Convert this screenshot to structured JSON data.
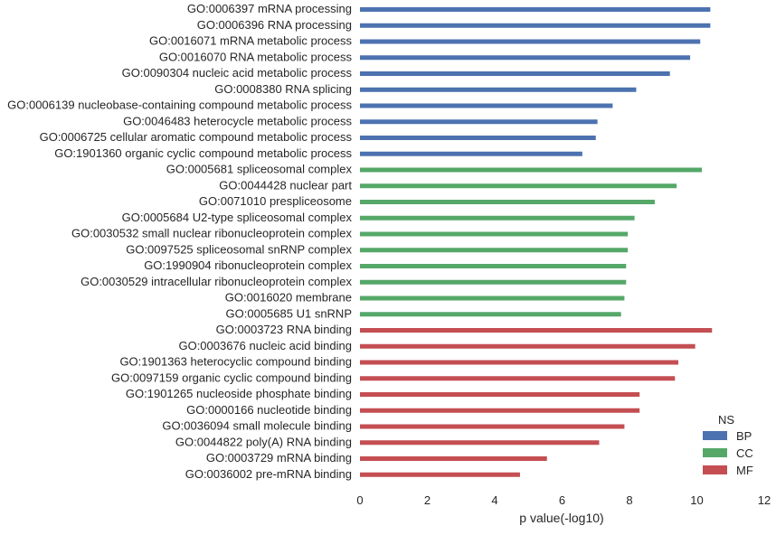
{
  "chart_data": {
    "type": "bar",
    "orientation": "horizontal",
    "xlabel": "p value(-log10)",
    "ylabel": "",
    "xlim": [
      0,
      12
    ],
    "xticks": [
      0,
      2,
      4,
      6,
      8,
      10,
      12
    ],
    "grid": false,
    "legend": {
      "title": "NS",
      "placement": "bottom-right",
      "entries": [
        {
          "label": "BP",
          "color": "#4c72b0"
        },
        {
          "label": "CC",
          "color": "#55a868"
        },
        {
          "label": "MF",
          "color": "#c44e52"
        }
      ]
    },
    "bars": [
      {
        "label": "GO:0006397 mRNA processing",
        "value": 10.4,
        "group": "BP"
      },
      {
        "label": "GO:0006396 RNA processing",
        "value": 10.4,
        "group": "BP"
      },
      {
        "label": "GO:0016071 mRNA metabolic process",
        "value": 10.1,
        "group": "BP"
      },
      {
        "label": "GO:0016070 RNA metabolic process",
        "value": 9.8,
        "group": "BP"
      },
      {
        "label": "GO:0090304 nucleic acid metabolic process",
        "value": 9.2,
        "group": "BP"
      },
      {
        "label": "GO:0008380 RNA splicing",
        "value": 8.2,
        "group": "BP"
      },
      {
        "label": "GO:0006139 nucleobase-containing compound metabolic process",
        "value": 7.5,
        "group": "BP"
      },
      {
        "label": "GO:0046483 heterocycle metabolic process",
        "value": 7.05,
        "group": "BP"
      },
      {
        "label": "GO:0006725 cellular aromatic compound metabolic process",
        "value": 7.0,
        "group": "BP"
      },
      {
        "label": "GO:1901360 organic cyclic compound metabolic process",
        "value": 6.6,
        "group": "BP"
      },
      {
        "label": "GO:0005681 spliceosomal complex",
        "value": 10.15,
        "group": "CC"
      },
      {
        "label": "GO:0044428 nuclear part",
        "value": 9.4,
        "group": "CC"
      },
      {
        "label": "GO:0071010 prespliceosome",
        "value": 8.75,
        "group": "CC"
      },
      {
        "label": "GO:0005684 U2-type spliceosomal complex",
        "value": 8.15,
        "group": "CC"
      },
      {
        "label": "GO:0030532 small nuclear ribonucleoprotein complex",
        "value": 7.95,
        "group": "CC"
      },
      {
        "label": "GO:0097525 spliceosomal snRNP complex",
        "value": 7.95,
        "group": "CC"
      },
      {
        "label": "GO:1990904 ribonucleoprotein complex",
        "value": 7.9,
        "group": "CC"
      },
      {
        "label": "GO:0030529 intracellular ribonucleoprotein complex",
        "value": 7.9,
        "group": "CC"
      },
      {
        "label": "GO:0016020 membrane",
        "value": 7.85,
        "group": "CC"
      },
      {
        "label": "GO:0005685 U1 snRNP",
        "value": 7.75,
        "group": "CC"
      },
      {
        "label": "GO:0003723 RNA binding",
        "value": 10.45,
        "group": "MF"
      },
      {
        "label": "GO:0003676 nucleic acid binding",
        "value": 9.95,
        "group": "MF"
      },
      {
        "label": "GO:1901363 heterocyclic compound binding",
        "value": 9.45,
        "group": "MF"
      },
      {
        "label": "GO:0097159 organic cyclic compound binding",
        "value": 9.35,
        "group": "MF"
      },
      {
        "label": "GO:1901265 nucleoside phosphate binding",
        "value": 8.3,
        "group": "MF"
      },
      {
        "label": "GO:0000166 nucleotide binding",
        "value": 8.3,
        "group": "MF"
      },
      {
        "label": "GO:0036094 small molecule binding",
        "value": 7.85,
        "group": "MF"
      },
      {
        "label": "GO:0044822 poly(A) RNA binding",
        "value": 7.1,
        "group": "MF"
      },
      {
        "label": "GO:0003729 mRNA binding",
        "value": 5.55,
        "group": "MF"
      },
      {
        "label": "GO:0036002 pre-mRNA binding",
        "value": 4.75,
        "group": "MF"
      }
    ]
  }
}
